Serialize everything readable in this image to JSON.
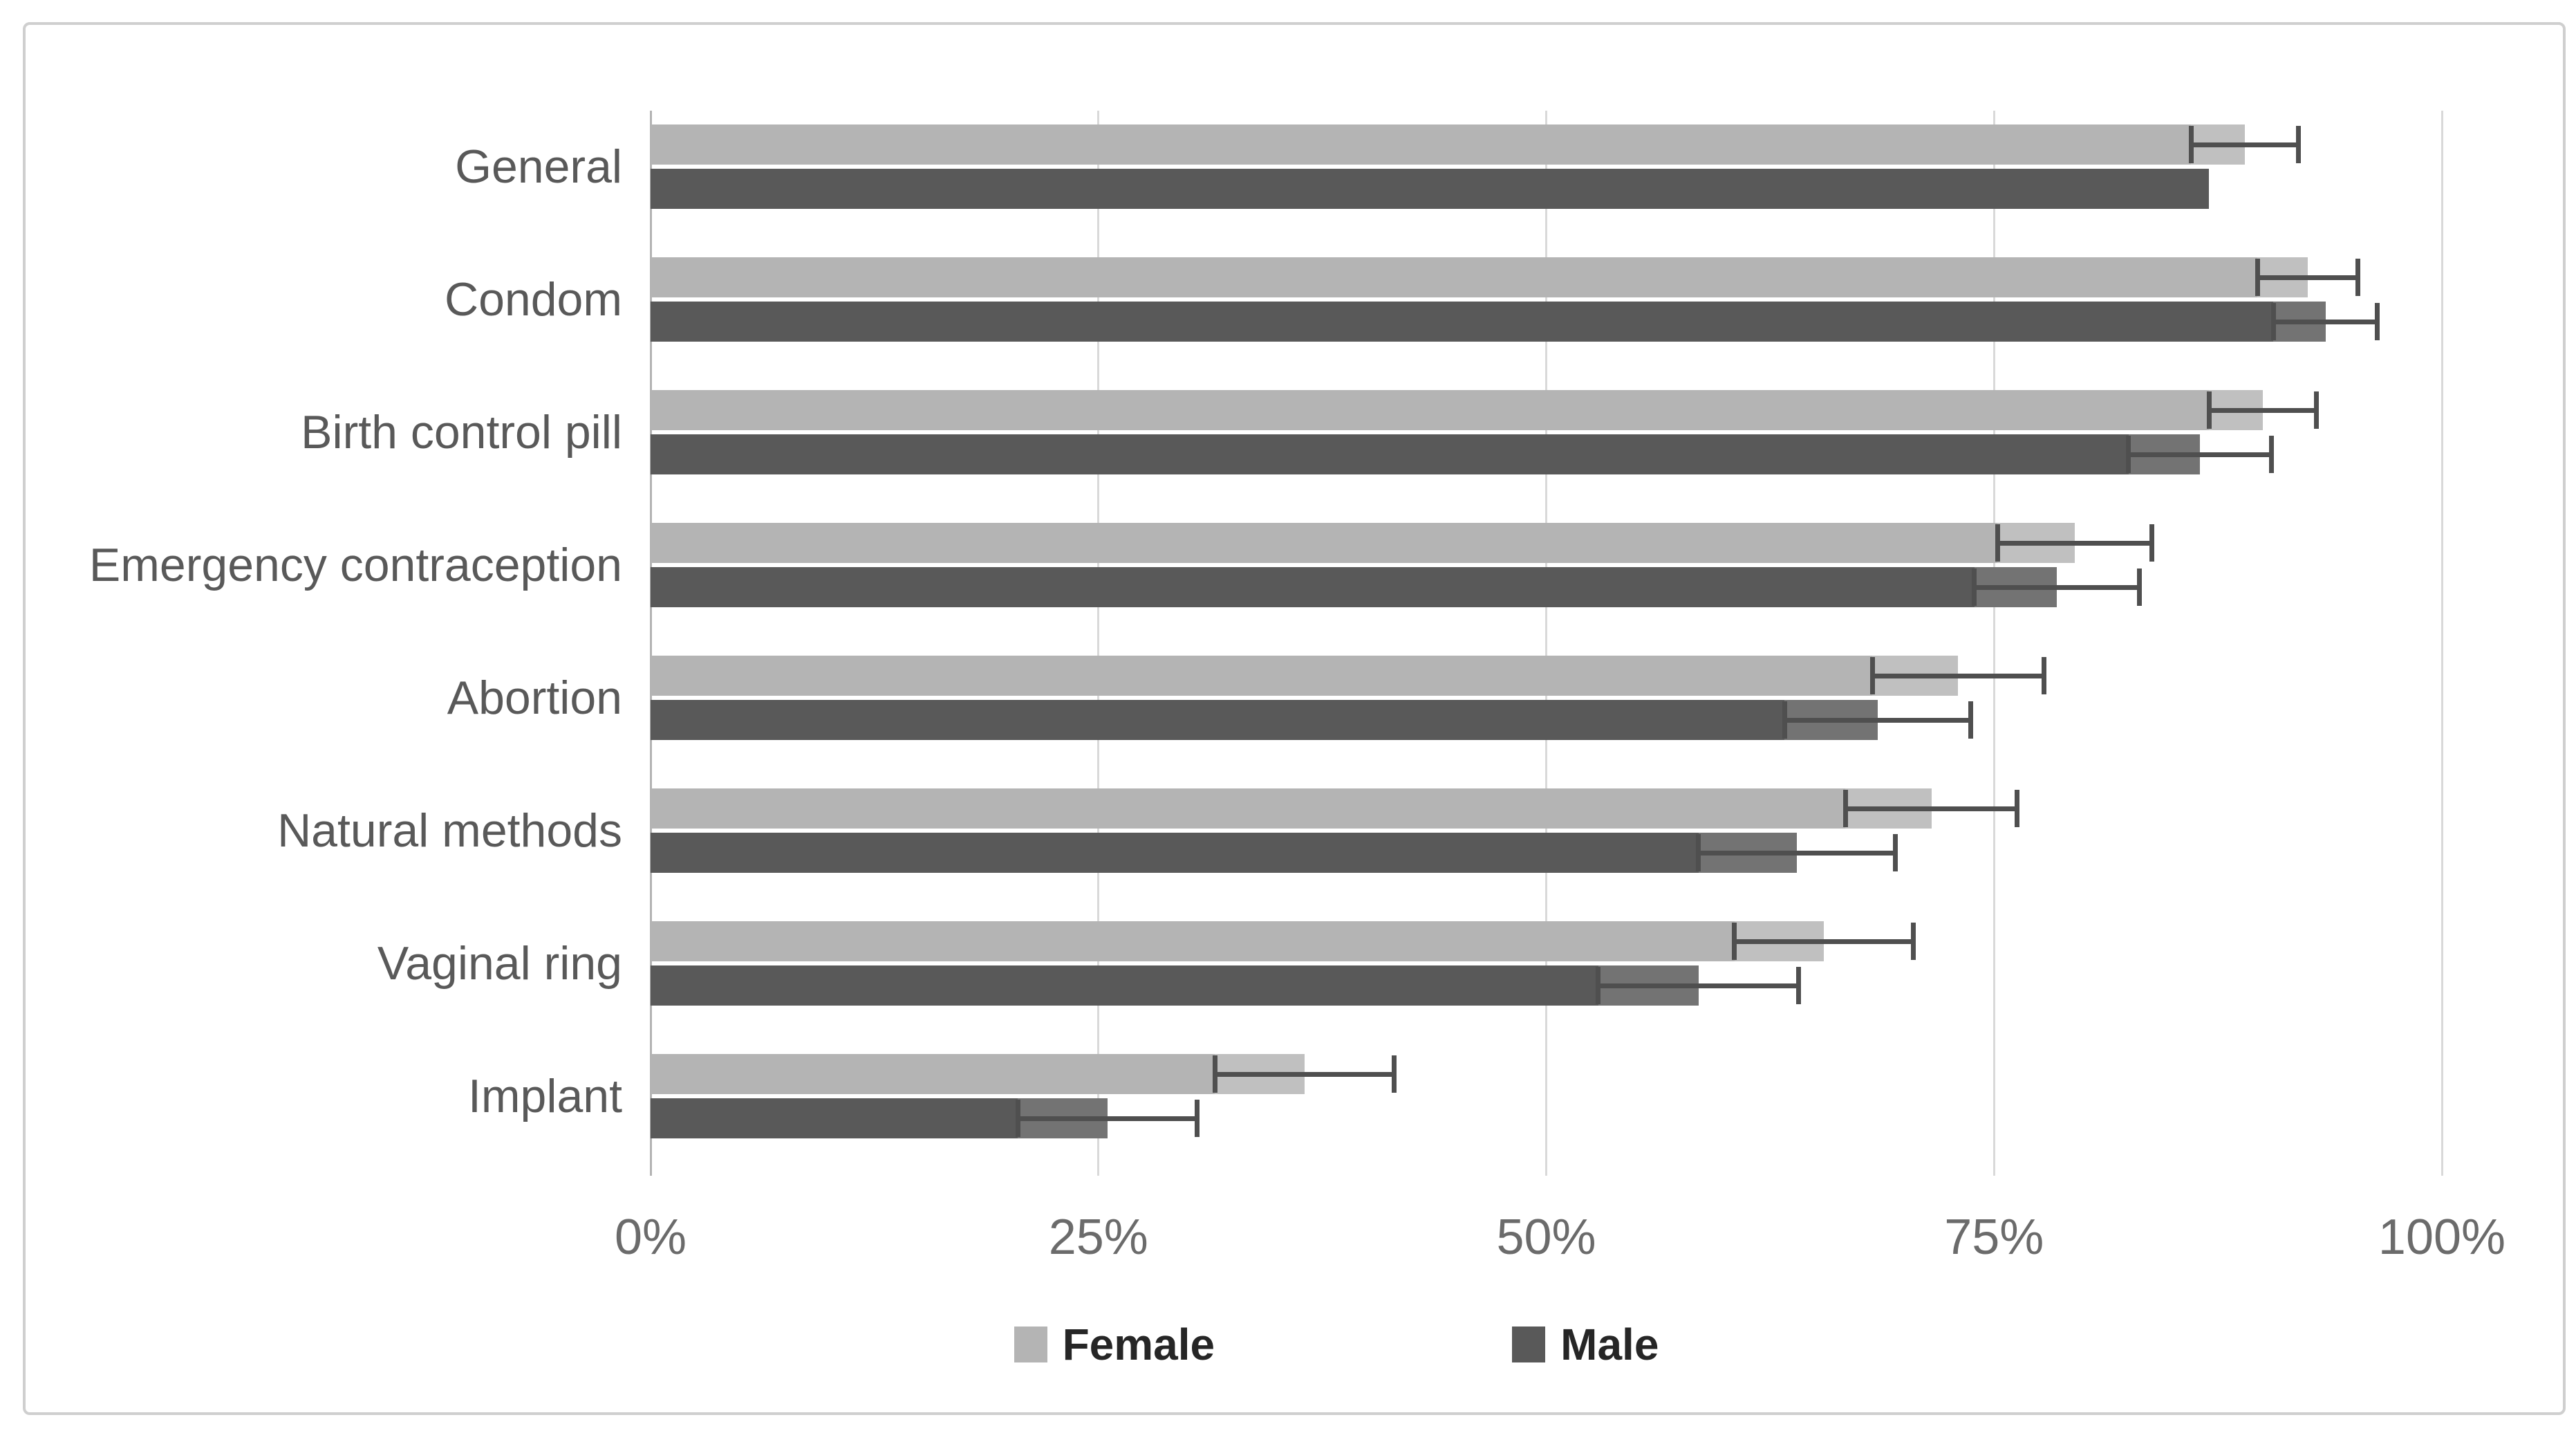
{
  "figure": {
    "background": "#ffffff",
    "border_color": "#cfcfcf"
  },
  "chart_data": {
    "type": "bar",
    "orientation": "horizontal",
    "title": "",
    "xlabel": "",
    "ylabel": "",
    "xlim": [
      0,
      100
    ],
    "x_ticks": [
      "0%",
      "25%",
      "50%",
      "75%",
      "100%"
    ],
    "x_tick_values": [
      0,
      25,
      50,
      75,
      100
    ],
    "grid": true,
    "legend_position": "bottom",
    "categories": [
      "General",
      "Condom",
      "Birth control pill",
      "Emergency contraception",
      "Abortion",
      "Natural methods",
      "Vaginal ring",
      "Implant"
    ],
    "series": [
      {
        "name": "Female",
        "color": "#b4b4b4",
        "values": [
          89,
          92.5,
          90,
          79.5,
          73,
          71.5,
          65.5,
          36.5
        ],
        "errors": [
          3,
          2.8,
          3,
          4.3,
          4.8,
          4.8,
          5,
          5
        ]
      },
      {
        "name": "Male",
        "color": "#595959",
        "values": [
          87,
          93.5,
          86.5,
          78.5,
          68.5,
          64,
          58.5,
          25.5
        ],
        "errors": [
          0,
          2.9,
          4,
          4.6,
          5.2,
          5.5,
          5.6,
          5
        ]
      }
    ],
    "error_bar_color": "#4f4f4f",
    "gridline_color": "#d9d9d9",
    "axis_line_color": "#b3b3b3"
  }
}
